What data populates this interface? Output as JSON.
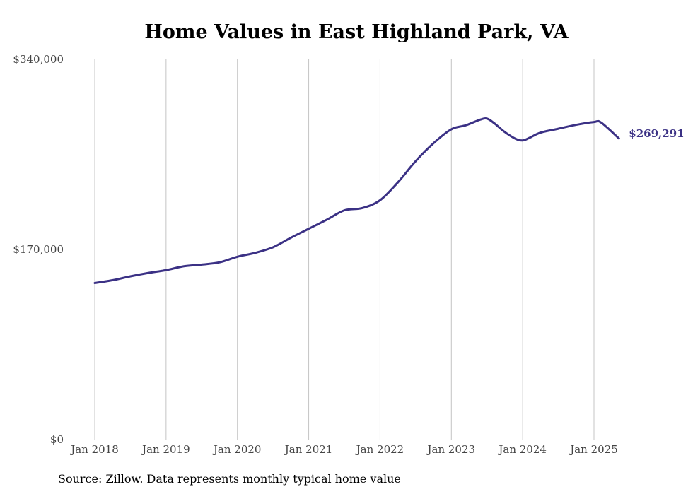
{
  "chart_data": {
    "type": "line",
    "title": "Home Values in East Highland Park, VA",
    "xlabel": "",
    "ylabel": "",
    "ylim": [
      0,
      340000
    ],
    "yticks": [
      {
        "value": 0,
        "label": "$0"
      },
      {
        "value": 170000,
        "label": "$170,000"
      },
      {
        "value": 340000,
        "label": "$340,000"
      }
    ],
    "xticks": [
      {
        "value": 2018.0,
        "label": "Jan 2018"
      },
      {
        "value": 2019.0,
        "label": "Jan 2019"
      },
      {
        "value": 2020.0,
        "label": "Jan 2020"
      },
      {
        "value": 2021.0,
        "label": "Jan 2021"
      },
      {
        "value": 2022.0,
        "label": "Jan 2022"
      },
      {
        "value": 2023.0,
        "label": "Jan 2023"
      },
      {
        "value": 2024.0,
        "label": "Jan 2024"
      },
      {
        "value": 2025.0,
        "label": "Jan 2025"
      }
    ],
    "xlim": [
      2017.0,
      2026.3
    ],
    "grid": "vertical",
    "series": [
      {
        "name": "",
        "color": "#3b3185",
        "end_label": "$269,291",
        "x": [
          2018.0,
          2018.25,
          2018.5,
          2018.75,
          2019.0,
          2019.25,
          2019.5,
          2019.75,
          2020.0,
          2020.25,
          2020.5,
          2020.75,
          2021.0,
          2021.25,
          2021.5,
          2021.75,
          2022.0,
          2022.25,
          2022.5,
          2022.75,
          2023.0,
          2023.2,
          2023.4,
          2023.5,
          2023.6,
          2023.75,
          2023.9,
          2024.0,
          2024.1,
          2024.25,
          2024.5,
          2024.75,
          2025.0,
          2025.1,
          2025.35
        ],
        "values": [
          140000,
          142500,
          146000,
          149000,
          151500,
          155000,
          156500,
          158500,
          163500,
          167000,
          172000,
          180500,
          188500,
          196500,
          205000,
          207000,
          214000,
          230000,
          249000,
          265000,
          277500,
          281000,
          286000,
          287000,
          283000,
          275000,
          269000,
          267500,
          270000,
          274500,
          278000,
          281500,
          284000,
          283500,
          269291
        ]
      }
    ]
  },
  "source": "Source: Zillow. Data represents monthly typical home value"
}
